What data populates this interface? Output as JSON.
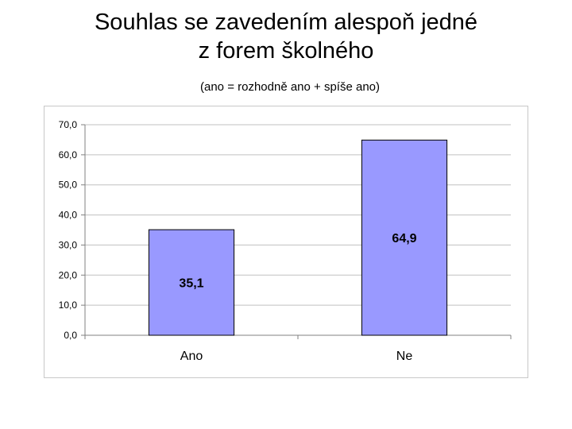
{
  "title_line1": "Souhlas se zavedením alespoň jedné",
  "title_line2": "z forem školného",
  "subtitle": "(ano = rozhodně ano + spíše ano)",
  "colors": {
    "bar_fill": "#9999FF",
    "bar_stroke": "#000000",
    "grid": "#c0c0c0",
    "axis": "#808080"
  },
  "chart_data": {
    "type": "bar",
    "categories": [
      "Ano",
      "Ne"
    ],
    "values": [
      35.1,
      64.9
    ],
    "value_labels": [
      "35,1",
      "64,9"
    ],
    "title": "Souhlas se zavedením alespoň jedné z forem školného",
    "subtitle": "(ano = rozhodně ano + spíše ano)",
    "xlabel": "",
    "ylabel": "",
    "ylim": [
      0,
      70
    ],
    "yticks": [
      0,
      10,
      20,
      30,
      40,
      50,
      60,
      70
    ],
    "ytick_labels": [
      "0,0",
      "10,0",
      "20,0",
      "30,0",
      "40,0",
      "50,0",
      "60,0",
      "70,0"
    ],
    "grid": true,
    "legend": false
  }
}
